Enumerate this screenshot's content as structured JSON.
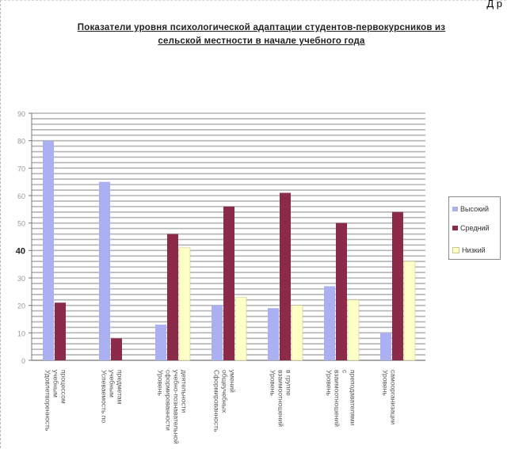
{
  "header": {
    "corner_text": "Д            р"
  },
  "chart_data": {
    "type": "bar",
    "title": "Показатели уровня психологической адаптации студентов-первокурсников из сельской местности в начале учебного года",
    "xlabel": "",
    "ylabel": "",
    "ylim": [
      0,
      90
    ],
    "yticks": [
      0,
      10,
      20,
      30,
      40,
      50,
      60,
      70,
      80,
      90
    ],
    "grid": true,
    "legend_position": "right",
    "categories": [
      "Удовлетворенность учебным процессом",
      "Успеваемость по учебным предметам",
      "Уровень сформированности учебно-познавательной деятельности",
      "Сформированность общеучебных умений",
      "Уровень взаимоотношений в группе",
      "Уровень взаимоотношений с преподавателями",
      "Уровень самоорганизации"
    ],
    "series": [
      {
        "name": "Высокий",
        "values": [
          80,
          65,
          13,
          20,
          19,
          27,
          10
        ]
      },
      {
        "name": "Средний",
        "values": [
          21,
          8,
          46,
          56,
          61,
          50,
          54
        ]
      },
      {
        "name": "Низкий",
        "values": [
          0,
          0,
          41,
          23,
          20,
          22,
          36
        ]
      }
    ],
    "colors": [
      "#aab0f2",
      "#8c2a4a",
      "#ffffc8"
    ]
  }
}
